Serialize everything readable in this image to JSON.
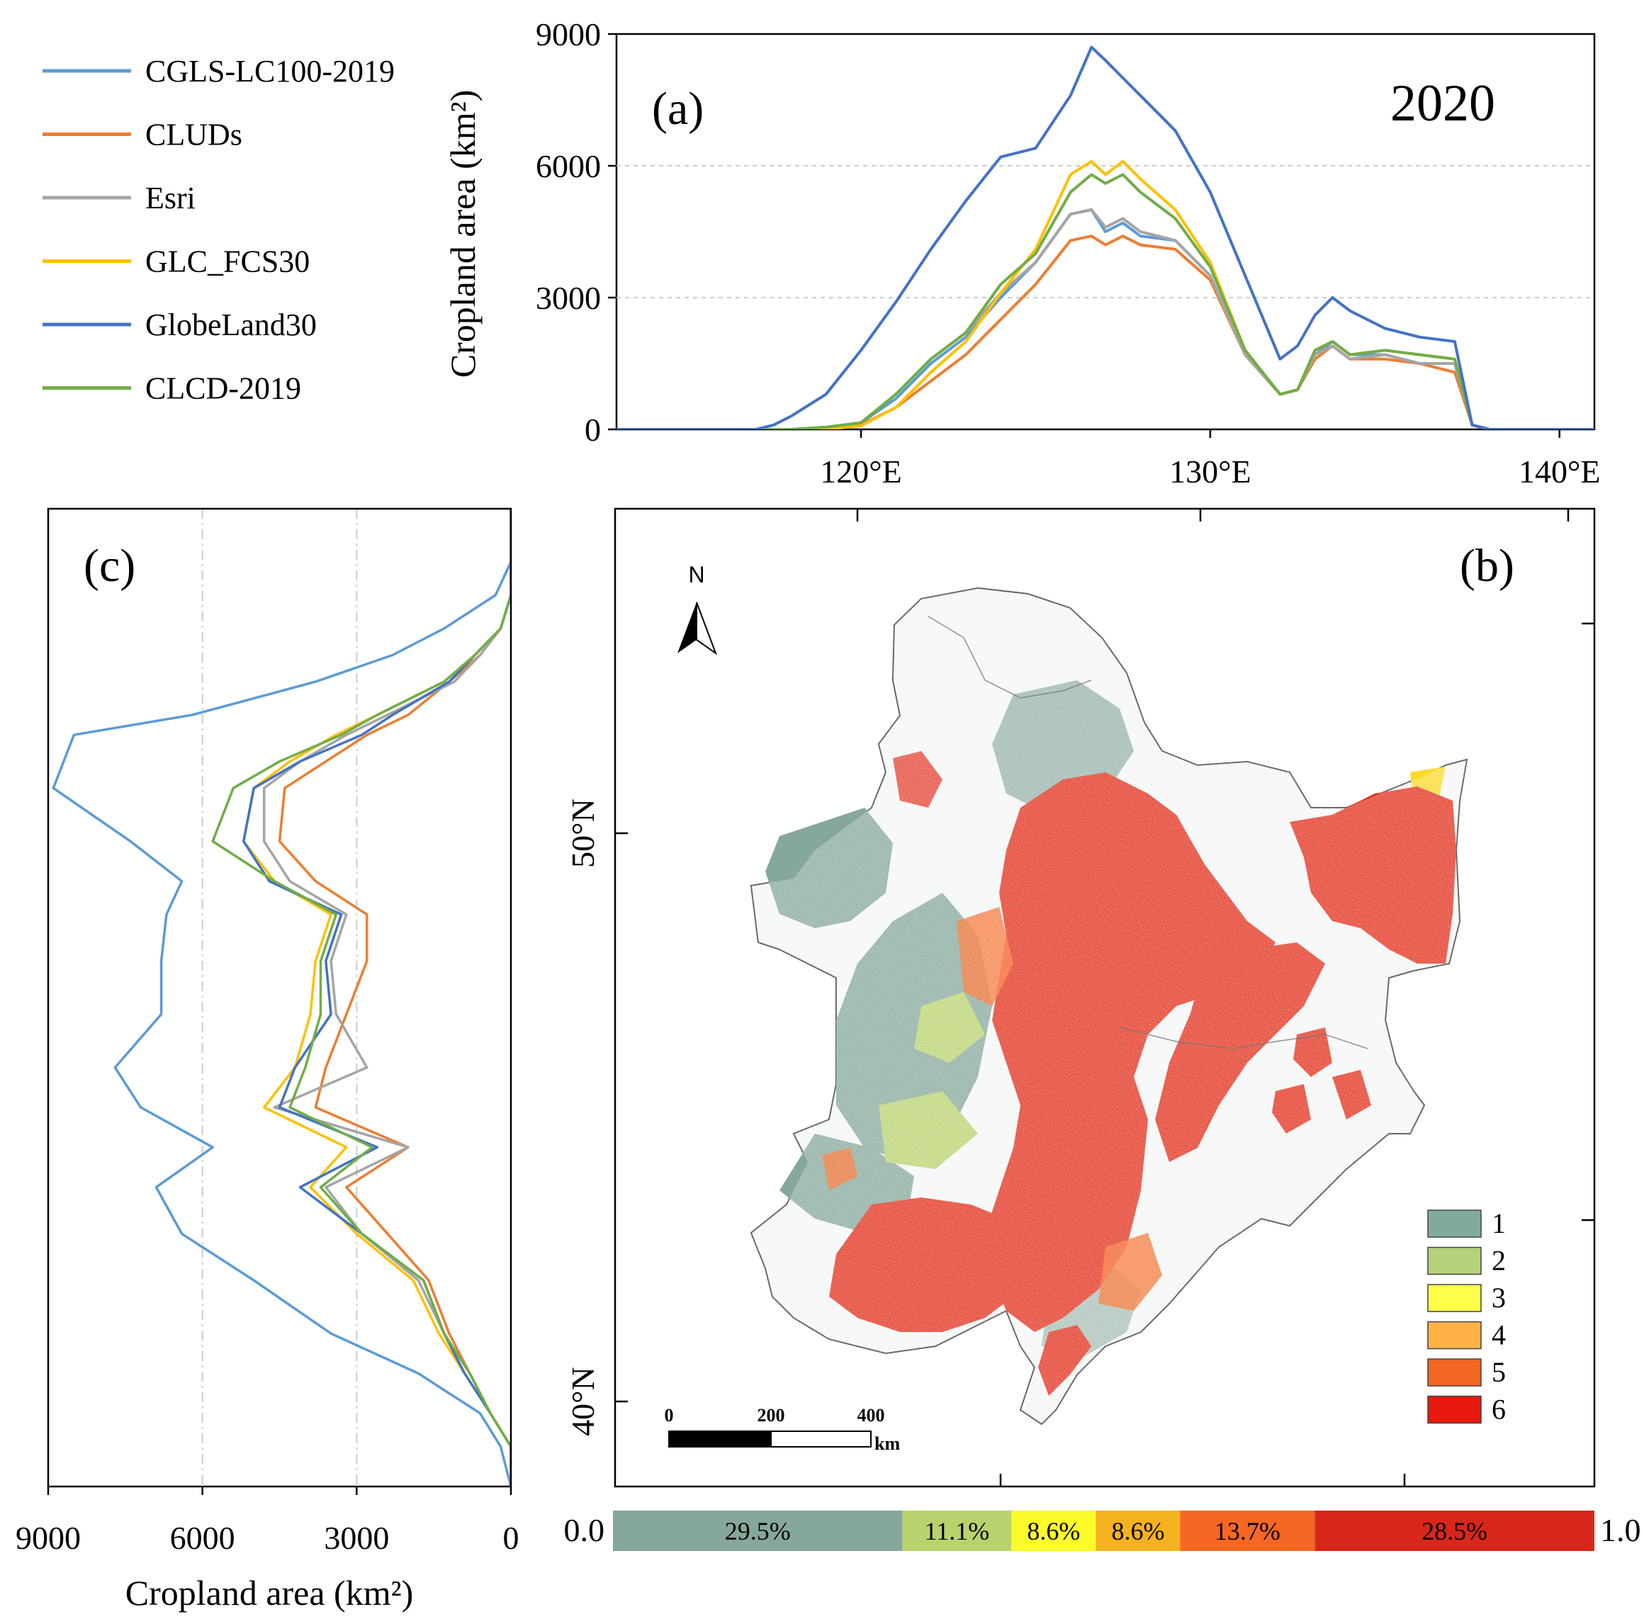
{
  "figure": {
    "legend": [
      "CGLS-LC100-2019",
      "CLUDs",
      "Esri",
      "GLC_FCS30",
      "GlobeLand30",
      "CLCD-2019"
    ],
    "panel_a": {
      "label": "(a)",
      "year": "2020",
      "ylabel": "Cropland area (km²)"
    },
    "panel_b": {
      "label": "(b)",
      "north": "N",
      "scale_labels": [
        "0",
        "200",
        "400"
      ],
      "scale_unit": "km"
    },
    "panel_c": {
      "label": "(c)",
      "xlabel": "Cropland area (km²)"
    }
  },
  "colors": {
    "CGLS-LC100-2019": "#5b9bd5",
    "CLUDs": "#ed7d31",
    "Esri": "#a5a5a5",
    "GLC_FCS30": "#ffc000",
    "GlobeLand30": "#4472c4",
    "CLCD-2019": "#70ad47"
  },
  "chart_data": [
    {
      "type": "line",
      "panel": "a",
      "title": "2020",
      "xlabel": "",
      "ylabel": "Cropland area (km²)",
      "xlim": [
        113,
        141
      ],
      "ylim": [
        0,
        9000
      ],
      "xticks": [
        120,
        130,
        140
      ],
      "xtick_labels": [
        "120°E",
        "130°E",
        "140°E"
      ],
      "yticks": [
        0,
        3000,
        6000,
        9000
      ],
      "ytick_labels": [
        "0",
        "3000",
        "6000",
        "9000"
      ],
      "grid": "horizontal dashed",
      "x": [
        113,
        117,
        117.5,
        118,
        119,
        120,
        121,
        122,
        123,
        124,
        125,
        126,
        126.6,
        127,
        127.5,
        128,
        129,
        130,
        131,
        132,
        132.5,
        133,
        133.5,
        134,
        135,
        136,
        137,
        137.5,
        138,
        141
      ],
      "series": [
        {
          "name": "GlobeLand30",
          "values": [
            0,
            0,
            100,
            300,
            800,
            1800,
            2900,
            4100,
            5200,
            6200,
            6400,
            7600,
            8700,
            8400,
            8000,
            7600,
            6800,
            5400,
            3500,
            1600,
            1900,
            2600,
            3000,
            2700,
            2300,
            2100,
            2000,
            100,
            0,
            0
          ]
        },
        {
          "name": "CGLS-LC100-2019",
          "values": [
            0,
            0,
            0,
            0,
            50,
            150,
            700,
            1500,
            2100,
            3000,
            3800,
            4900,
            5000,
            4500,
            4700,
            4400,
            4300,
            3500,
            1700,
            800,
            900,
            1700,
            2000,
            1700,
            1700,
            1500,
            1500,
            100,
            0,
            0
          ]
        },
        {
          "name": "CLUDs",
          "values": [
            0,
            0,
            0,
            0,
            0,
            100,
            500,
            1100,
            1700,
            2500,
            3300,
            4300,
            4400,
            4200,
            4400,
            4200,
            4100,
            3400,
            1700,
            800,
            900,
            1600,
            1900,
            1600,
            1600,
            1500,
            1300,
            100,
            0,
            0
          ]
        },
        {
          "name": "Esri",
          "values": [
            0,
            0,
            0,
            0,
            50,
            150,
            800,
            1600,
            2200,
            3100,
            3800,
            4900,
            5000,
            4600,
            4800,
            4500,
            4300,
            3500,
            1700,
            800,
            900,
            1700,
            1900,
            1600,
            1700,
            1500,
            1500,
            100,
            0,
            0
          ]
        },
        {
          "name": "GLC_FCS30",
          "values": [
            0,
            0,
            0,
            0,
            0,
            80,
            500,
            1300,
            2000,
            3100,
            4100,
            5800,
            6100,
            5800,
            6100,
            5700,
            5000,
            3800,
            1800,
            800,
            900,
            1800,
            2000,
            1700,
            1800,
            1700,
            1600,
            100,
            0,
            0
          ]
        },
        {
          "name": "CLCD-2019",
          "values": [
            0,
            0,
            0,
            0,
            50,
            150,
            800,
            1600,
            2200,
            3300,
            4000,
            5400,
            5800,
            5600,
            5800,
            5400,
            4800,
            3700,
            1800,
            800,
            900,
            1800,
            2000,
            1700,
            1800,
            1700,
            1600,
            100,
            0,
            0
          ]
        }
      ]
    },
    {
      "type": "line",
      "panel": "c",
      "xlabel": "Cropland area (km²)",
      "ylabel": "",
      "xlim": [
        9000,
        0
      ],
      "ylim": [
        38.9,
        53.6
      ],
      "xticks": [
        9000,
        6000,
        3000,
        0
      ],
      "xtick_labels": [
        "9000",
        "6000",
        "3000",
        "0"
      ],
      "grid": "vertical dash-dot",
      "y": [
        53.6,
        52.8,
        52.3,
        51.8,
        51.4,
        51.0,
        50.5,
        50.2,
        49.8,
        49.4,
        48.6,
        48.0,
        47.5,
        46.8,
        46.0,
        45.2,
        44.6,
        44.0,
        43.4,
        42.7,
        42.0,
        41.2,
        40.6,
        40.0,
        39.5,
        38.9
      ],
      "series": [
        {
          "name": "CGLS-LC100-2019",
          "values": [
            0,
            0,
            300,
            1300,
            2300,
            3800,
            6200,
            8500,
            8700,
            8900,
            7400,
            6400,
            6700,
            6800,
            6800,
            7700,
            7200,
            5800,
            6900,
            6400,
            5000,
            3500,
            1800,
            600,
            200,
            0
          ]
        },
        {
          "name": "CLUDs",
          "values": [
            0,
            0,
            0,
            200,
            600,
            1200,
            2000,
            2800,
            3600,
            4400,
            4500,
            3800,
            2800,
            2800,
            3200,
            3600,
            3800,
            2000,
            3200,
            2400,
            1600,
            1200,
            800,
            400,
            0,
            0
          ]
        },
        {
          "name": "Esri",
          "values": [
            0,
            0,
            0,
            200,
            600,
            1100,
            2400,
            3200,
            4100,
            4800,
            4800,
            4300,
            3200,
            3500,
            3400,
            2800,
            4600,
            2000,
            3600,
            2900,
            1800,
            1300,
            800,
            400,
            0,
            0
          ]
        },
        {
          "name": "GLC_FCS30",
          "values": [
            0,
            0,
            0,
            200,
            700,
            1300,
            2600,
            3400,
            4300,
            5000,
            5200,
            4600,
            3500,
            3800,
            3900,
            4200,
            4800,
            3200,
            3900,
            3000,
            1900,
            1400,
            900,
            400,
            0,
            0
          ]
        },
        {
          "name": "GlobeLand30",
          "values": [
            0,
            0,
            0,
            200,
            700,
            1200,
            2300,
            2900,
            4100,
            5000,
            5200,
            4700,
            3300,
            3600,
            3500,
            4200,
            4500,
            2600,
            4100,
            2900,
            1700,
            1300,
            900,
            400,
            0,
            0
          ]
        },
        {
          "name": "CLCD-2019",
          "values": [
            0,
            0,
            0,
            200,
            700,
            1300,
            2600,
            3300,
            4500,
            5400,
            5800,
            4600,
            3400,
            3700,
            3700,
            4000,
            4300,
            2700,
            3700,
            2900,
            1700,
            1300,
            800,
            400,
            0,
            0
          ]
        }
      ]
    },
    {
      "type": "map",
      "panel": "b",
      "xticks": [
        120,
        130,
        140
      ],
      "yticks": [
        40,
        50
      ],
      "ytick_labels": [
        "40°N",
        "50°N"
      ],
      "classes": [
        {
          "label": "1",
          "color": "#82aa9c"
        },
        {
          "label": "2",
          "color": "#b5d17a"
        },
        {
          "label": "3",
          "color": "#ffff4a"
        },
        {
          "label": "4",
          "color": "#ffb347"
        },
        {
          "label": "5",
          "color": "#f36523"
        },
        {
          "label": "6",
          "color": "#e8190e"
        }
      ]
    },
    {
      "type": "bar",
      "orientation": "stacked-horizontal",
      "xlim": [
        0.0,
        1.0
      ],
      "end_labels": [
        "0.0",
        "1.0"
      ],
      "categories": [
        "1",
        "2",
        "3",
        "4",
        "5",
        "6"
      ],
      "values": [
        29.5,
        11.1,
        8.6,
        8.6,
        13.7,
        28.5
      ],
      "value_labels": [
        "29.5%",
        "11.1%",
        "8.6%",
        "8.6%",
        "13.7%",
        "28.5%"
      ],
      "colors": [
        "#86a89b",
        "#b9d26e",
        "#fbfb29",
        "#f6b11e",
        "#f56723",
        "#d9261a"
      ]
    }
  ]
}
